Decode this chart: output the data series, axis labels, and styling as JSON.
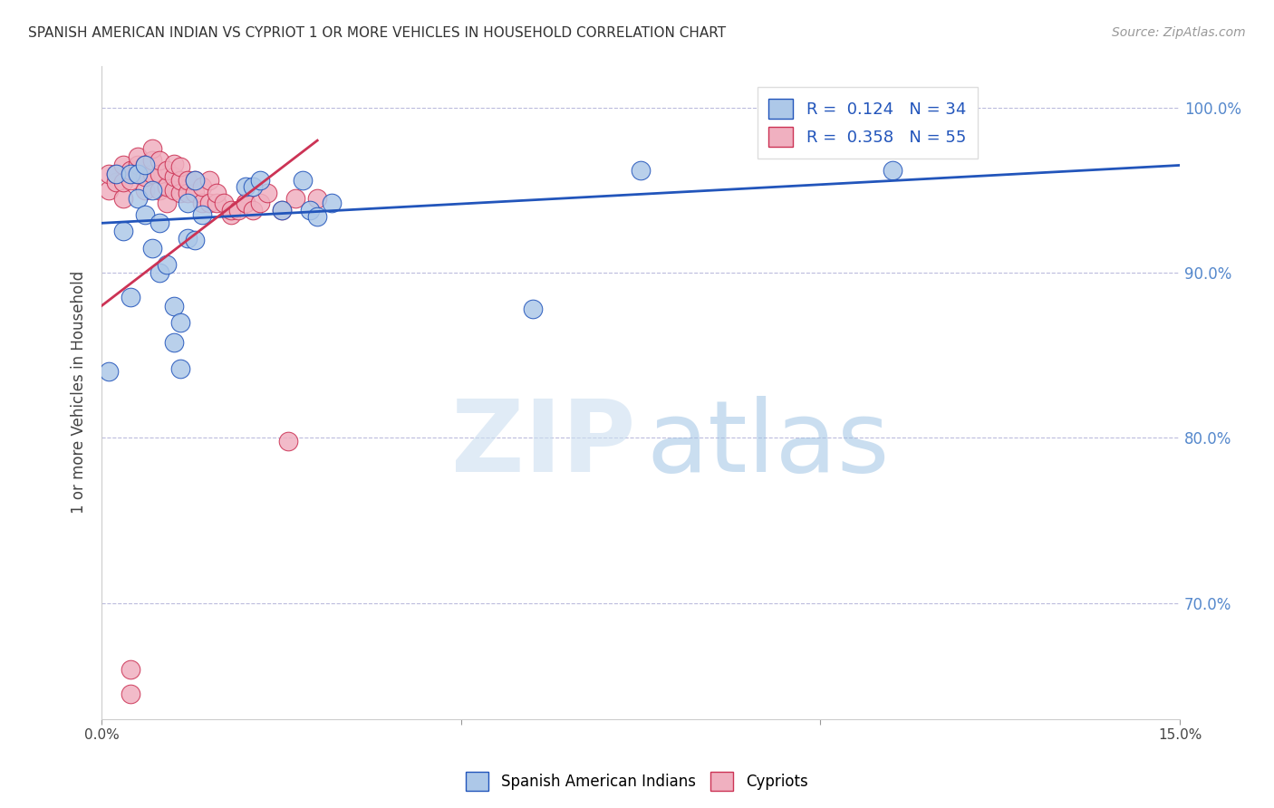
{
  "title": "SPANISH AMERICAN INDIAN VS CYPRIOT 1 OR MORE VEHICLES IN HOUSEHOLD CORRELATION CHART",
  "source": "Source: ZipAtlas.com",
  "ylabel": "1 or more Vehicles in Household",
  "xlim": [
    0.0,
    0.15
  ],
  "ylim": [
    0.63,
    1.025
  ],
  "ytick_positions": [
    0.7,
    0.8,
    0.9,
    1.0
  ],
  "ytick_labels": [
    "70.0%",
    "80.0%",
    "90.0%",
    "100.0%"
  ],
  "legend_r_blue": "0.124",
  "legend_n_blue": 34,
  "legend_r_pink": "0.358",
  "legend_n_pink": 55,
  "legend_label_blue": "Spanish American Indians",
  "legend_label_pink": "Cypriots",
  "blue_color": "#adc8e8",
  "pink_color": "#f0b0c0",
  "line_blue_color": "#2255bb",
  "line_pink_color": "#cc3355",
  "blue_line_x": [
    0.0,
    0.15
  ],
  "blue_line_y": [
    0.93,
    0.965
  ],
  "pink_line_x": [
    0.0,
    0.03
  ],
  "pink_line_y": [
    0.88,
    0.98
  ],
  "blue_scatter_x": [
    0.001,
    0.002,
    0.003,
    0.004,
    0.004,
    0.005,
    0.005,
    0.006,
    0.006,
    0.007,
    0.007,
    0.008,
    0.008,
    0.009,
    0.01,
    0.01,
    0.011,
    0.011,
    0.012,
    0.012,
    0.013,
    0.013,
    0.014,
    0.02,
    0.021,
    0.022,
    0.025,
    0.028,
    0.029,
    0.03,
    0.032,
    0.06,
    0.075,
    0.11
  ],
  "blue_scatter_y": [
    0.84,
    0.96,
    0.925,
    0.96,
    0.885,
    0.945,
    0.96,
    0.965,
    0.935,
    0.95,
    0.915,
    0.93,
    0.9,
    0.905,
    0.88,
    0.858,
    0.87,
    0.842,
    0.921,
    0.942,
    0.92,
    0.956,
    0.935,
    0.952,
    0.952,
    0.956,
    0.938,
    0.956,
    0.938,
    0.934,
    0.942,
    0.878,
    0.962,
    0.962
  ],
  "pink_scatter_x": [
    0.001,
    0.001,
    0.002,
    0.002,
    0.003,
    0.003,
    0.003,
    0.004,
    0.004,
    0.005,
    0.005,
    0.005,
    0.006,
    0.006,
    0.006,
    0.007,
    0.007,
    0.007,
    0.008,
    0.008,
    0.008,
    0.009,
    0.009,
    0.009,
    0.01,
    0.01,
    0.01,
    0.011,
    0.011,
    0.011,
    0.012,
    0.012,
    0.013,
    0.013,
    0.014,
    0.014,
    0.015,
    0.015,
    0.016,
    0.016,
    0.017,
    0.018,
    0.018,
    0.019,
    0.02,
    0.02,
    0.021,
    0.022,
    0.023,
    0.025,
    0.026,
    0.027,
    0.03,
    0.004,
    0.004
  ],
  "pink_scatter_y": [
    0.95,
    0.96,
    0.955,
    0.96,
    0.945,
    0.955,
    0.965,
    0.956,
    0.962,
    0.96,
    0.965,
    0.97,
    0.95,
    0.958,
    0.965,
    0.96,
    0.968,
    0.975,
    0.95,
    0.96,
    0.968,
    0.942,
    0.952,
    0.962,
    0.95,
    0.958,
    0.966,
    0.948,
    0.956,
    0.964,
    0.948,
    0.956,
    0.948,
    0.956,
    0.942,
    0.952,
    0.942,
    0.956,
    0.942,
    0.948,
    0.942,
    0.935,
    0.938,
    0.938,
    0.942,
    0.942,
    0.938,
    0.942,
    0.948,
    0.938,
    0.798,
    0.945,
    0.945,
    0.66,
    0.645
  ]
}
